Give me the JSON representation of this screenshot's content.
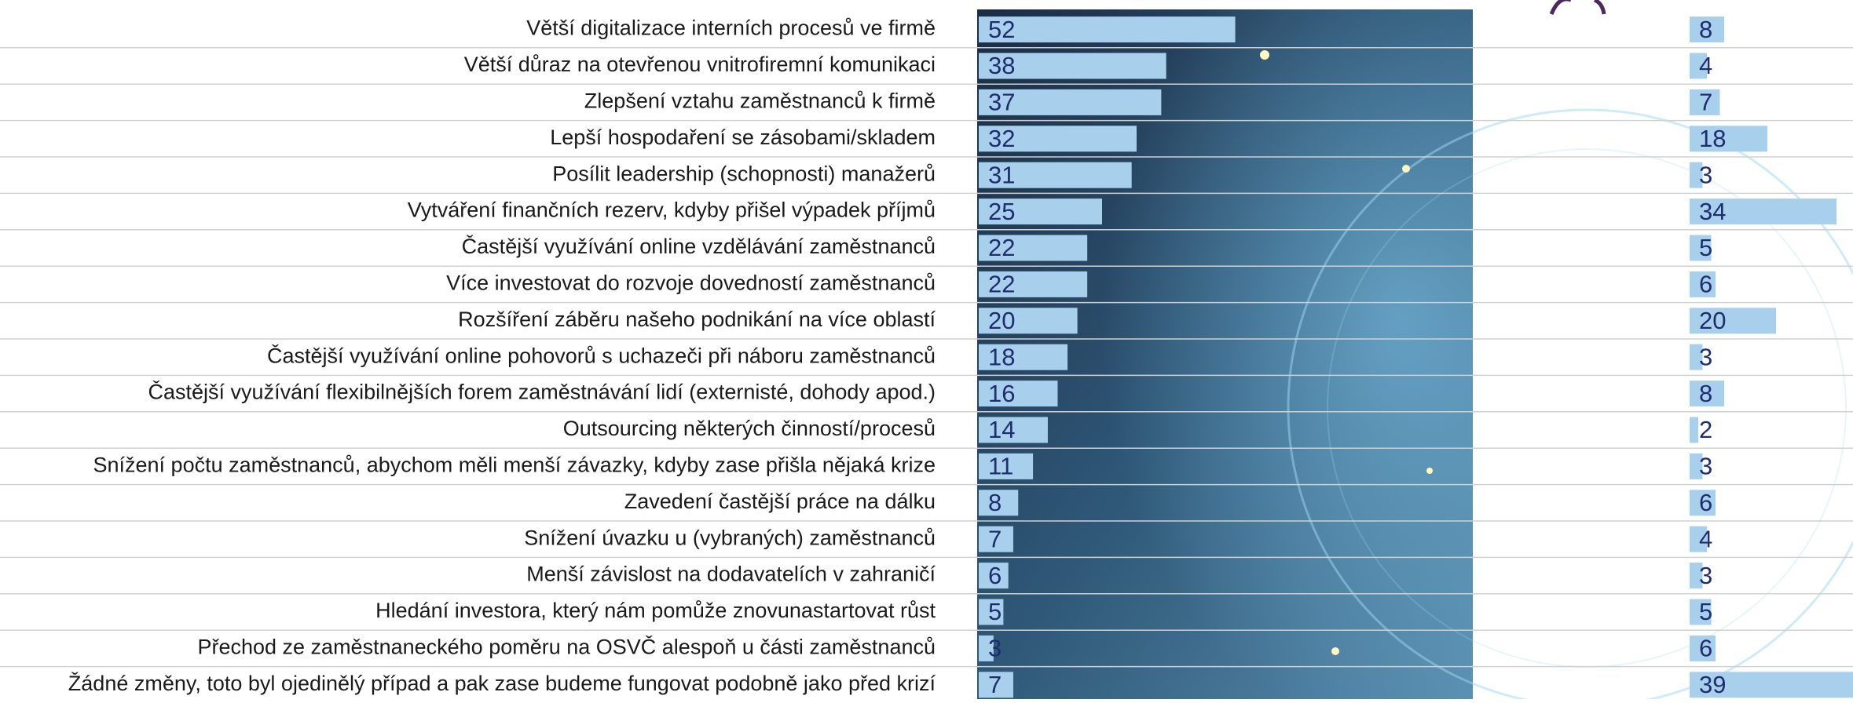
{
  "chart_data": {
    "type": "bar",
    "orientation": "horizontal",
    "categories": [
      "Větší digitalizace interních procesů ve firmě",
      "Větší důraz na otevřenou vnitrofiremní komunikaci",
      "Zlepšení vztahu zaměstnanců k firmě",
      "Lepší hospodaření se zásobami/skladem",
      "Posílit leadership (schopnosti) manažerů",
      "Vytváření finančních rezerv, kdyby přišel výpadek příjmů",
      "Častější využívání online vzdělávání zaměstnanců",
      "Více investovat do rozvoje dovedností zaměstnanců",
      "Rozšíření záběru našeho podnikání na více oblastí",
      "Častější využívání online pohovorů s uchazeči při náboru zaměstnanců",
      "Častější využívání flexibilnějších forem zaměstnávání lidí (externisté, dohody apod.)",
      "Outsourcing některých činností/procesů",
      "Snížení počtu zaměstnanců, abychom měli menší závazky, kdyby zase přišla nějaká krize",
      "Zavedení častější práce na dálku",
      "Snížení úvazku u (vybraných) zaměstnanců",
      "Menší závislost na dodavatelích v zahraničí",
      "Hledání investora, který nám pomůže znovunastartovat růst",
      "Přechod ze zaměstnaneckého poměru na OSVČ alespoň u části zaměstnanců",
      "Žádné změny, toto byl ojedinělý případ a pak zase budeme fungovat podobně jako před krizí"
    ],
    "series": [
      {
        "color": "#a8d0ec",
        "values": [
          52,
          38,
          37,
          32,
          31,
          25,
          22,
          22,
          20,
          18,
          16,
          14,
          11,
          8,
          7,
          6,
          5,
          3,
          7
        ]
      },
      {
        "color": "#a8d0ec",
        "values": [
          8,
          4,
          7,
          18,
          3,
          34,
          5,
          6,
          20,
          3,
          8,
          2,
          3,
          6,
          4,
          3,
          5,
          6,
          39
        ]
      }
    ]
  }
}
